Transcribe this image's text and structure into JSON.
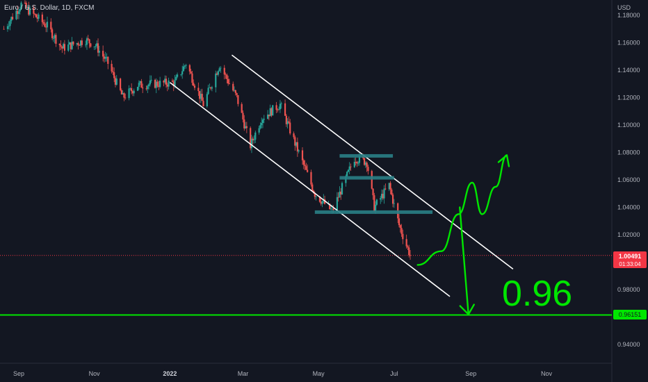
{
  "header": {
    "title": "Euro / U.S. Dollar, 1D, FXCM",
    "currency": "USD"
  },
  "colors": {
    "background": "#131722",
    "up": "#26a69a",
    "down": "#ef5350",
    "annotation_green": "#00e600",
    "channel": "#ffffff",
    "zone": "#2a7f86",
    "price_label": "#f23645"
  },
  "price_tag": {
    "value": "1.00491",
    "countdown": "01:33:04"
  },
  "support_tag": {
    "value": "0.96151"
  },
  "annotation": {
    "text": "0.96"
  },
  "chart_data": {
    "type": "candlestick",
    "title": "Euro / U.S. Dollar, 1D, FXCM",
    "ylabel": "USD",
    "ylim": [
      0.925,
      1.185
    ],
    "y_ticks": [
      "1.18000",
      "1.16000",
      "1.14000",
      "1.12000",
      "1.10000",
      "1.08000",
      "1.06000",
      "1.04000",
      "1.02000",
      "0.98000",
      "0.94000"
    ],
    "x_ticks": [
      {
        "label": "Sep",
        "date": "2021-09-01",
        "bold": false
      },
      {
        "label": "Nov",
        "date": "2021-11-01",
        "bold": false
      },
      {
        "label": "2022",
        "date": "2022-01-01",
        "bold": true
      },
      {
        "label": "Mar",
        "date": "2022-03-01",
        "bold": false
      },
      {
        "label": "May",
        "date": "2022-05-01",
        "bold": false
      },
      {
        "label": "Jul",
        "date": "2022-07-01",
        "bold": false
      },
      {
        "label": "Sep",
        "date": "2022-09-01",
        "bold": false
      },
      {
        "label": "Nov",
        "date": "2022-11-01",
        "bold": false
      }
    ],
    "price_path": [
      {
        "date": "2021-08-20",
        "close": 1.17
      },
      {
        "date": "2021-09-03",
        "close": 1.188
      },
      {
        "date": "2021-09-24",
        "close": 1.172
      },
      {
        "date": "2021-10-06",
        "close": 1.156
      },
      {
        "date": "2021-10-25",
        "close": 1.162
      },
      {
        "date": "2021-11-02",
        "close": 1.158
      },
      {
        "date": "2021-11-12",
        "close": 1.145
      },
      {
        "date": "2021-11-24",
        "close": 1.12
      },
      {
        "date": "2021-12-06",
        "close": 1.129
      },
      {
        "date": "2021-12-20",
        "close": 1.13
      },
      {
        "date": "2022-01-05",
        "close": 1.131
      },
      {
        "date": "2022-01-14",
        "close": 1.145
      },
      {
        "date": "2022-01-28",
        "close": 1.115
      },
      {
        "date": "2022-02-10",
        "close": 1.144
      },
      {
        "date": "2022-02-24",
        "close": 1.12
      },
      {
        "date": "2022-03-07",
        "close": 1.085
      },
      {
        "date": "2022-03-16",
        "close": 1.105
      },
      {
        "date": "2022-03-31",
        "close": 1.115
      },
      {
        "date": "2022-04-14",
        "close": 1.082
      },
      {
        "date": "2022-04-28",
        "close": 1.05
      },
      {
        "date": "2022-05-12",
        "close": 1.037
      },
      {
        "date": "2022-05-30",
        "close": 1.076
      },
      {
        "date": "2022-06-09",
        "close": 1.073
      },
      {
        "date": "2022-06-15",
        "close": 1.04
      },
      {
        "date": "2022-06-27",
        "close": 1.056
      },
      {
        "date": "2022-07-05",
        "close": 1.027
      },
      {
        "date": "2022-07-14",
        "close": 1.0049
      }
    ],
    "channel": {
      "upper": [
        {
          "date": "2022-02-20",
          "y": 1.151
        },
        {
          "date": "2022-10-05",
          "y": 0.995
        }
      ],
      "lower": [
        {
          "date": "2022-01-01",
          "y": 1.131
        },
        {
          "date": "2022-08-15",
          "y": 0.975
        }
      ]
    },
    "zones": [
      {
        "start": "2022-05-18",
        "end": "2022-06-30",
        "y": 1.0775
      },
      {
        "start": "2022-05-18",
        "end": "2022-07-01",
        "y": 1.0615
      },
      {
        "start": "2022-04-28",
        "end": "2022-08-01",
        "y": 1.0365
      }
    ],
    "support": {
      "y": 0.96151
    },
    "last_price": {
      "y": 1.00491
    },
    "projection_up": [
      {
        "date": "2022-07-20",
        "y": 0.998
      },
      {
        "date": "2022-08-08",
        "y": 1.008
      },
      {
        "date": "2022-08-22",
        "y": 1.035
      },
      {
        "date": "2022-09-02",
        "y": 1.058
      },
      {
        "date": "2022-09-10",
        "y": 1.035
      },
      {
        "date": "2022-09-21",
        "y": 1.055
      },
      {
        "date": "2022-09-30",
        "y": 1.078
      }
    ],
    "projection_down": [
      {
        "date": "2022-08-23",
        "y": 1.04
      },
      {
        "date": "2022-08-30",
        "y": 0.962
      }
    ]
  }
}
